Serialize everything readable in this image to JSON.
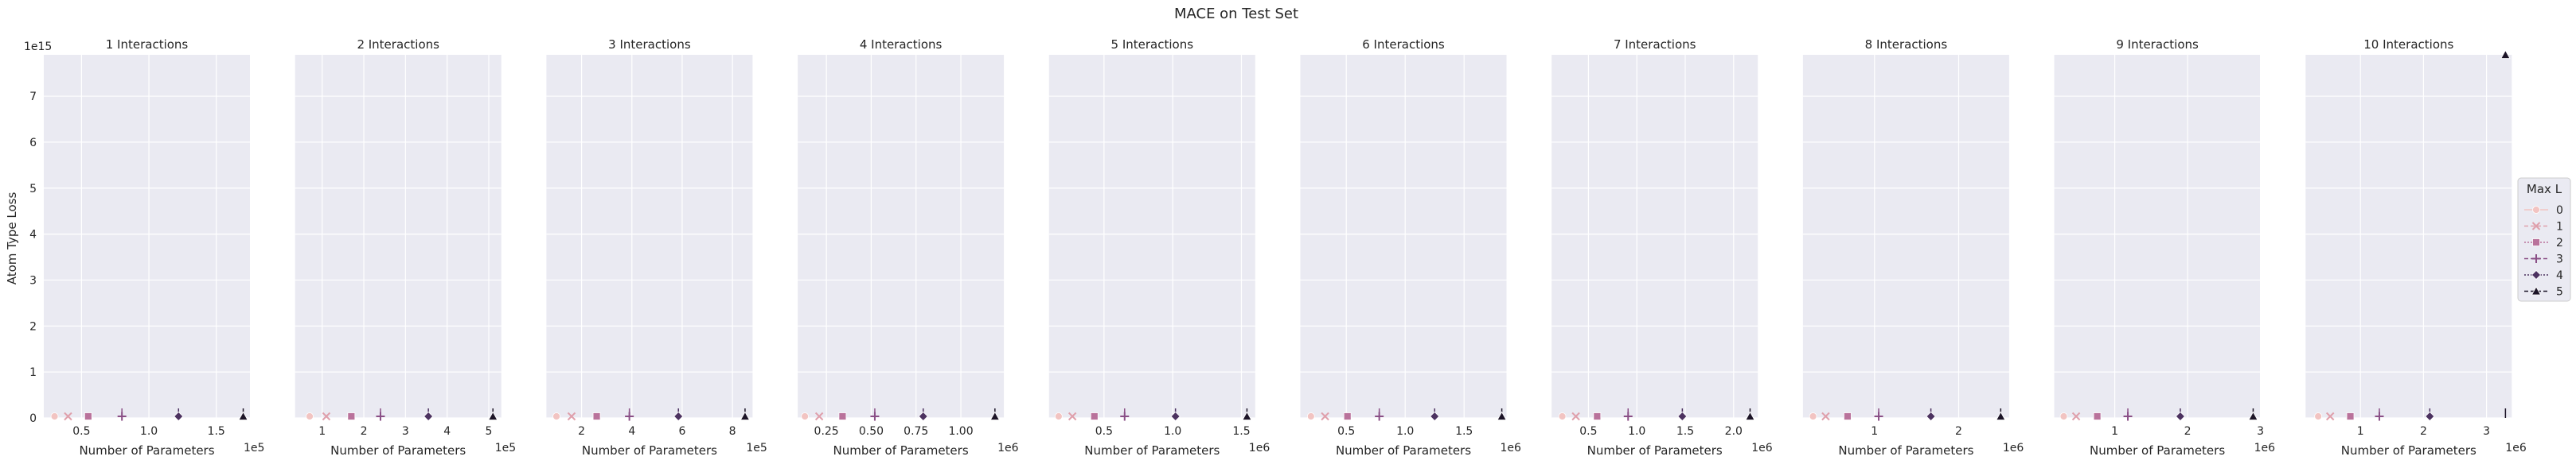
{
  "suptitle": "MACE on Test Set",
  "ylabel": "Atom Type Loss",
  "xlabel": "Number of Parameters",
  "y_offset_label": "1e15",
  "legend": {
    "title": "Max L",
    "placement": "center-right",
    "entries": [
      "0",
      "1",
      "2",
      "3",
      "4",
      "5"
    ]
  },
  "colors": {
    "plot_bg": "#eaeaf2",
    "grid": "#ffffff",
    "series": [
      "#f2c4c2",
      "#df9fab",
      "#b9729b",
      "#8a4f86",
      "#4c3260",
      "#1c1427"
    ]
  },
  "chart_data": {
    "type": "line",
    "title": "MACE on Test Set",
    "xlabel": "Number of Parameters",
    "ylabel": "Atom Type Loss",
    "ylim": [
      0,
      7900000000000000.0
    ],
    "y_scale_label": "1e15",
    "yticks": [
      0,
      1,
      2,
      3,
      4,
      5,
      6,
      7
    ],
    "grid": true,
    "legend_placement": "center-right",
    "legend_title": "Max L",
    "series_names": [
      "0",
      "1",
      "2",
      "3",
      "4",
      "5"
    ],
    "panels": [
      {
        "title": "1 Interactions",
        "x_scale_label": "1e5",
        "xlim": [
          22000.0,
          175000.0
        ],
        "xticks": [
          50000.0,
          100000.0,
          150000.0
        ],
        "xtick_labels": [
          "0.5",
          "1.0",
          "1.5"
        ],
        "x": [
          30000.0,
          40000.0,
          55000.0,
          80000.0,
          122000.0,
          170000.0
        ]
      },
      {
        "title": "2 Interactions",
        "x_scale_label": "1e5",
        "xlim": [
          35000.0,
          530000.0
        ],
        "xticks": [
          100000.0,
          200000.0,
          300000.0,
          400000.0,
          500000.0
        ],
        "xtick_labels": [
          "1",
          "2",
          "3",
          "4",
          "5"
        ],
        "x": [
          70000.0,
          110000.0,
          170000.0,
          240000.0,
          355000.0,
          510000.0
        ]
      },
      {
        "title": "3 Interactions",
        "x_scale_label": "1e5",
        "xlim": [
          60000.0,
          880000.0
        ],
        "xticks": [
          200000.0,
          400000.0,
          600000.0,
          800000.0
        ],
        "xtick_labels": [
          "2",
          "4",
          "6",
          "8"
        ],
        "x": [
          100000.0,
          160000.0,
          260000.0,
          390000.0,
          585000.0,
          850000.0
        ]
      },
      {
        "title": "4 Interactions",
        "x_scale_label": "1e6",
        "xlim": [
          90000.0,
          1240000.0
        ],
        "xticks": [
          250000.0,
          500000.0,
          750000.0,
          1000000.0
        ],
        "xtick_labels": [
          "0.25",
          "0.50",
          "0.75",
          "1.00"
        ],
        "x": [
          130000.0,
          210000.0,
          340000.0,
          520000.0,
          790000.0,
          1190000.0
        ]
      },
      {
        "title": "5 Interactions",
        "x_scale_label": "1e6",
        "xlim": [
          100000.0,
          1600000.0
        ],
        "xticks": [
          500000.0,
          1000000.0,
          1500000.0
        ],
        "xtick_labels": [
          "0.5",
          "1.0",
          "1.5"
        ],
        "x": [
          170000.0,
          270000.0,
          430000.0,
          650000.0,
          1020000.0,
          1540000.0
        ]
      },
      {
        "title": "6 Interactions",
        "x_scale_label": "1e6",
        "xlim": [
          110000.0,
          1860000.0
        ],
        "xticks": [
          500000.0,
          1000000.0,
          1500000.0
        ],
        "xtick_labels": [
          "0.5",
          "1.0",
          "1.5"
        ],
        "x": [
          200000.0,
          320000.0,
          510000.0,
          780000.0,
          1250000.0,
          1820000.0
        ]
      },
      {
        "title": "7 Interactions",
        "x_scale_label": "1e6",
        "xlim": [
          120000.0,
          2250000.0
        ],
        "xticks": [
          500000.0,
          1000000.0,
          1500000.0,
          2000000.0
        ],
        "xtick_labels": [
          "0.5",
          "1.0",
          "1.5",
          "2.0"
        ],
        "x": [
          230000.0,
          370000.0,
          590000.0,
          910000.0,
          1470000.0,
          2170000.0
        ]
      },
      {
        "title": "8 Interactions",
        "x_scale_label": "1e6",
        "xlim": [
          150000.0,
          2600000.0
        ],
        "xticks": [
          1000000.0,
          2000000.0
        ],
        "xtick_labels": [
          "1",
          "2"
        ],
        "x": [
          270000.0,
          420000.0,
          680000.0,
          1050000.0,
          1670000.0,
          2500000.0
        ]
      },
      {
        "title": "9 Interactions",
        "x_scale_label": "1e6",
        "xlim": [
          170000.0,
          3000000.0
        ],
        "xticks": [
          1000000.0,
          2000000.0,
          3000000.0
        ],
        "xtick_labels": [
          "1",
          "2",
          "3"
        ],
        "x": [
          300000.0,
          470000.0,
          760000.0,
          1180000.0,
          1900000.0,
          2900000.0
        ]
      },
      {
        "title": "10 Interactions",
        "x_scale_label": "1e6",
        "xlim": [
          130000.0,
          3400000.0
        ],
        "xticks": [
          1000000.0,
          2000000.0,
          3000000.0
        ],
        "xtick_labels": [
          "1",
          "2",
          "3"
        ],
        "x": [
          330000.0,
          520000.0,
          840000.0,
          1300000.0,
          2100000.0,
          3300000.0
        ]
      }
    ],
    "series": [
      {
        "name": "0",
        "marker": "circle",
        "y": [
          4000000000000.0,
          4000000000000.0,
          4000000000000.0,
          4000000000000.0,
          4000000000000.0,
          4000000000000.0,
          4000000000000.0,
          4000000000000.0,
          4000000000000.0,
          4000000000000.0
        ]
      },
      {
        "name": "1",
        "marker": "x",
        "y": [
          4000000000000.0,
          4000000000000.0,
          4000000000000.0,
          4000000000000.0,
          4000000000000.0,
          4000000000000.0,
          4000000000000.0,
          4000000000000.0,
          4000000000000.0,
          4000000000000.0
        ]
      },
      {
        "name": "2",
        "marker": "square",
        "y": [
          4000000000000.0,
          4000000000000.0,
          4000000000000.0,
          4000000000000.0,
          4000000000000.0,
          4000000000000.0,
          4000000000000.0,
          4000000000000.0,
          4000000000000.0,
          4000000000000.0
        ]
      },
      {
        "name": "3",
        "marker": "plus",
        "y": [
          4000000000000.0,
          4000000000000.0,
          4000000000000.0,
          4000000000000.0,
          4000000000000.0,
          4000000000000.0,
          4000000000000.0,
          4000000000000.0,
          4000000000000.0,
          4000000000000.0
        ]
      },
      {
        "name": "4",
        "marker": "diamond",
        "y": [
          4000000000000.0,
          4000000000000.0,
          4000000000000.0,
          4000000000000.0,
          4000000000000.0,
          4000000000000.0,
          4000000000000.0,
          4000000000000.0,
          4000000000000.0,
          4000000000000.0
        ]
      },
      {
        "name": "5",
        "marker": "triangle",
        "y": [
          4000000000000.0,
          4000000000000.0,
          4000000000000.0,
          4000000000000.0,
          4000000000000.0,
          4000000000000.0,
          4000000000000.0,
          4000000000000.0,
          4000000000000.0,
          7900000000000000.0
        ]
      }
    ]
  }
}
